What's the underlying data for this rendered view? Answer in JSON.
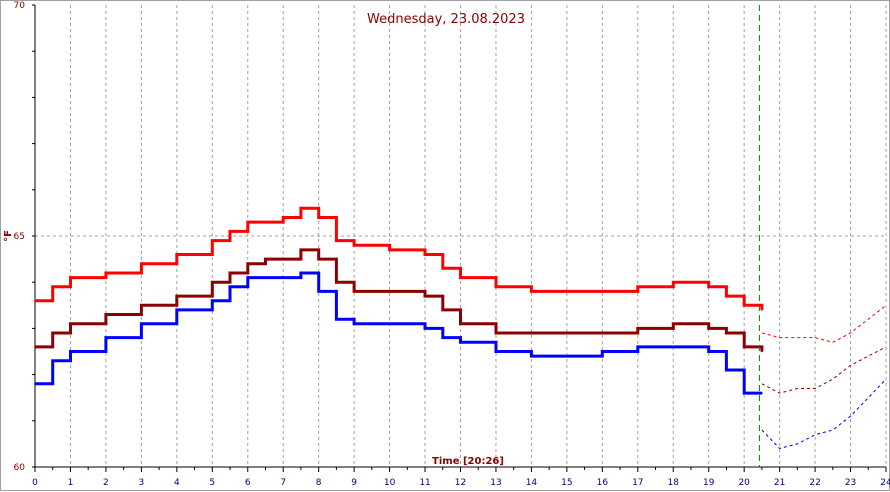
{
  "chart_data": {
    "type": "line",
    "title": "Wednesday, 23.08.2023",
    "xlabel": "Time [20:26]",
    "ylabel": "°F",
    "xlim": [
      0,
      24
    ],
    "ylim": [
      60,
      70
    ],
    "x_ticks": [
      "0",
      "1",
      "2",
      "3",
      "4",
      "5",
      "6",
      "7",
      "8",
      "9",
      "10",
      "11",
      "12",
      "13",
      "14",
      "15",
      "16",
      "17",
      "18",
      "19",
      "20",
      "21",
      "22",
      "23",
      "24"
    ],
    "y_ticks": [
      {
        "value": 60,
        "label": "60"
      },
      {
        "value": 65,
        "label": "65"
      },
      {
        "value": 70,
        "label": "70"
      }
    ],
    "current_time": 20.43,
    "grid": true,
    "series": [
      {
        "color": "#ff0000",
        "width": 3,
        "x": [
          0,
          0.5,
          1,
          2,
          3,
          4,
          5,
          5.5,
          6,
          6.5,
          7,
          7.5,
          7.7,
          8,
          8.5,
          9,
          10,
          11,
          11.5,
          12,
          13,
          14,
          15,
          16,
          17,
          18,
          19,
          19.5,
          20,
          20.5
        ],
        "y": [
          63.6,
          63.9,
          64.1,
          64.2,
          64.4,
          64.6,
          64.9,
          65.1,
          65.3,
          65.3,
          65.4,
          65.6,
          65.6,
          65.4,
          64.9,
          64.8,
          64.7,
          64.6,
          64.3,
          64.1,
          63.9,
          63.8,
          63.8,
          63.8,
          63.9,
          64.0,
          63.9,
          63.7,
          63.5,
          63.4
        ]
      },
      {
        "color": "#8b0000",
        "width": 3,
        "x": [
          0,
          0.5,
          1,
          2,
          3,
          4,
          5,
          5.5,
          6,
          6.5,
          7,
          7.5,
          7.7,
          8,
          8.5,
          9,
          10,
          11,
          11.5,
          12,
          13,
          14,
          15,
          16,
          17,
          18,
          19,
          19.5,
          20,
          20.5
        ],
        "y": [
          62.6,
          62.9,
          63.1,
          63.3,
          63.5,
          63.7,
          64.0,
          64.2,
          64.4,
          64.5,
          64.5,
          64.7,
          64.7,
          64.5,
          64.0,
          63.8,
          63.8,
          63.7,
          63.4,
          63.1,
          62.9,
          62.9,
          62.9,
          62.9,
          63.0,
          63.1,
          63.0,
          62.9,
          62.6,
          62.5
        ]
      },
      {
        "color": "#0000ff",
        "width": 3,
        "x": [
          0,
          0.5,
          1,
          2,
          3,
          4,
          5,
          5.5,
          6,
          6.5,
          7,
          7.5,
          7.7,
          8,
          8.5,
          9,
          10,
          11,
          11.5,
          12,
          13,
          14,
          15,
          16,
          17,
          18,
          19,
          19.5,
          20,
          20.5
        ],
        "y": [
          61.8,
          62.3,
          62.5,
          62.8,
          63.1,
          63.4,
          63.6,
          63.9,
          64.1,
          64.1,
          64.1,
          64.2,
          64.2,
          63.8,
          63.2,
          63.1,
          63.1,
          63.0,
          62.8,
          62.7,
          62.5,
          62.4,
          62.4,
          62.5,
          62.6,
          62.6,
          62.5,
          62.1,
          61.6,
          61.6
        ]
      },
      {
        "color": "#ff0000",
        "dashed": true,
        "x": [
          20.5,
          21,
          21.5,
          22,
          22.5,
          23,
          23.5,
          24
        ],
        "y": [
          62.9,
          62.8,
          62.8,
          62.8,
          62.7,
          62.9,
          63.2,
          63.5
        ]
      },
      {
        "color": "#8b0000",
        "dashed": true,
        "x": [
          20.5,
          21,
          21.5,
          22,
          22.5,
          23,
          23.5,
          24
        ],
        "y": [
          61.8,
          61.6,
          61.7,
          61.7,
          61.9,
          62.2,
          62.4,
          62.6
        ]
      },
      {
        "color": "#0000ff",
        "dashed": true,
        "x": [
          20.5,
          21,
          21.5,
          22,
          22.5,
          23,
          23.5,
          24
        ],
        "y": [
          60.8,
          60.4,
          60.5,
          60.7,
          60.8,
          61.1,
          61.5,
          61.9
        ]
      }
    ]
  }
}
